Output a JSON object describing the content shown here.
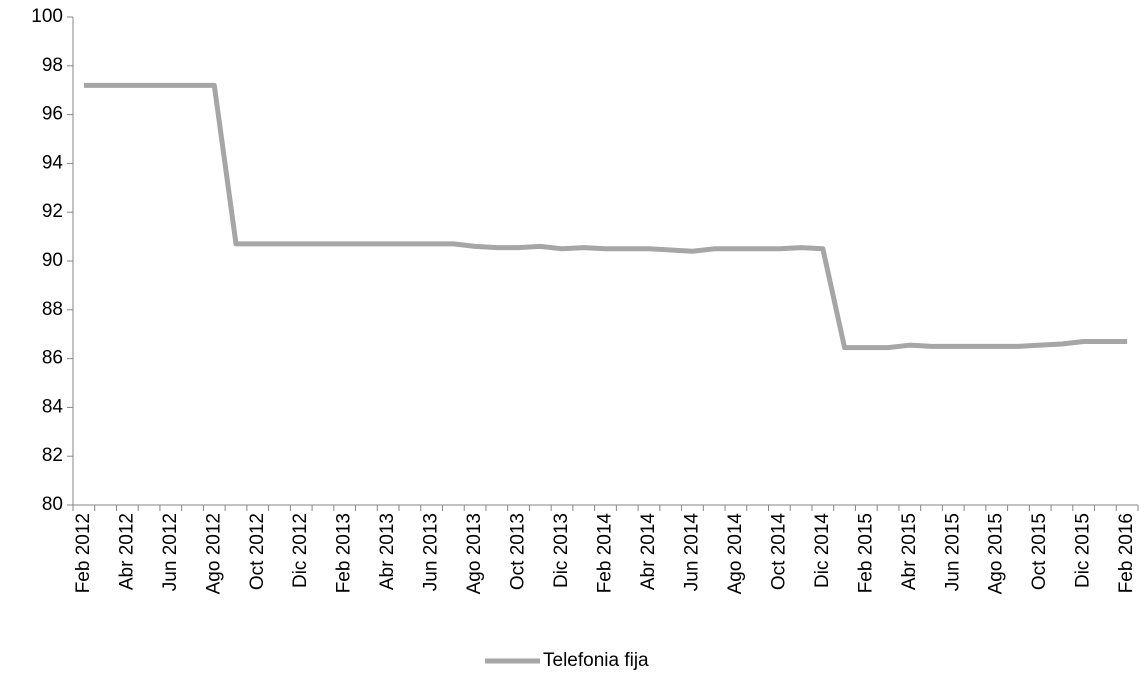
{
  "chart_data": {
    "type": "line",
    "categories": [
      "Feb 2012",
      null,
      "Abr 2012",
      null,
      "Jun 2012",
      null,
      "Ago 2012",
      null,
      "Oct 2012",
      null,
      "Dic 2012",
      null,
      "Feb 2013",
      null,
      "Abr 2013",
      null,
      "Jun 2013",
      null,
      "Ago 2013",
      null,
      "Oct 2013",
      null,
      "Dic 2013",
      null,
      "Feb 2014",
      null,
      "Abr 2014",
      null,
      "Jun 2014",
      null,
      "Ago 2014",
      null,
      "Oct 2014",
      null,
      "Dic 2014",
      null,
      "Feb 2015",
      null,
      "Abr 2015",
      null,
      "Jun 2015",
      null,
      "Ago 2015",
      null,
      "Oct 2015",
      null,
      "Dic 2015",
      null,
      "Feb 2016"
    ],
    "series": [
      {
        "name": "Telefonia fija",
        "color": "#a6a6a6",
        "values": [
          97.2,
          97.2,
          97.2,
          97.2,
          97.2,
          97.2,
          97.2,
          90.7,
          90.7,
          90.7,
          90.7,
          90.7,
          90.7,
          90.7,
          90.7,
          90.7,
          90.7,
          90.7,
          90.6,
          90.55,
          90.55,
          90.6,
          90.5,
          90.55,
          90.5,
          90.5,
          90.5,
          90.45,
          90.4,
          90.5,
          90.5,
          90.5,
          90.5,
          90.55,
          90.5,
          86.45,
          86.45,
          86.45,
          86.55,
          86.5,
          86.5,
          86.5,
          86.5,
          86.5,
          86.55,
          86.6,
          86.7,
          86.7,
          86.7
        ]
      }
    ],
    "ylim": [
      80,
      100
    ],
    "yticks": [
      80,
      82,
      84,
      86,
      88,
      90,
      92,
      94,
      96,
      98,
      100
    ],
    "legend": "bottom"
  }
}
